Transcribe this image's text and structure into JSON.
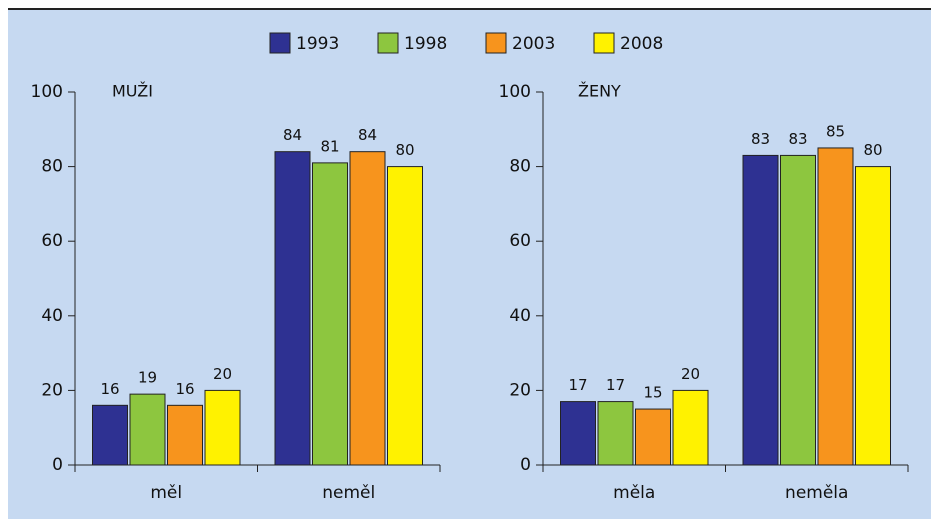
{
  "chart_data": [
    {
      "type": "bar",
      "title": "MUŽI",
      "categories": [
        "měl",
        "neměl"
      ],
      "series": [
        {
          "name": "1993",
          "color": "#2e3192",
          "values": [
            16,
            84
          ]
        },
        {
          "name": "1998",
          "color": "#8dc63f",
          "values": [
            19,
            81
          ]
        },
        {
          "name": "2003",
          "color": "#f7941d",
          "values": [
            16,
            84
          ]
        },
        {
          "name": "2008",
          "color": "#fff200",
          "values": [
            20,
            80
          ]
        }
      ],
      "ylim": [
        0,
        100
      ],
      "yticks": [
        0,
        20,
        40,
        60,
        80,
        100
      ]
    },
    {
      "type": "bar",
      "title": "ŽENY",
      "categories": [
        "měla",
        "neměla"
      ],
      "series": [
        {
          "name": "1993",
          "color": "#2e3192",
          "values": [
            17,
            83
          ]
        },
        {
          "name": "1998",
          "color": "#8dc63f",
          "values": [
            17,
            83
          ]
        },
        {
          "name": "2003",
          "color": "#f7941d",
          "values": [
            15,
            85
          ]
        },
        {
          "name": "2008",
          "color": "#fff200",
          "values": [
            20,
            80
          ]
        }
      ],
      "ylim": [
        0,
        100
      ],
      "yticks": [
        0,
        20,
        40,
        60,
        80,
        100
      ]
    }
  ]
}
